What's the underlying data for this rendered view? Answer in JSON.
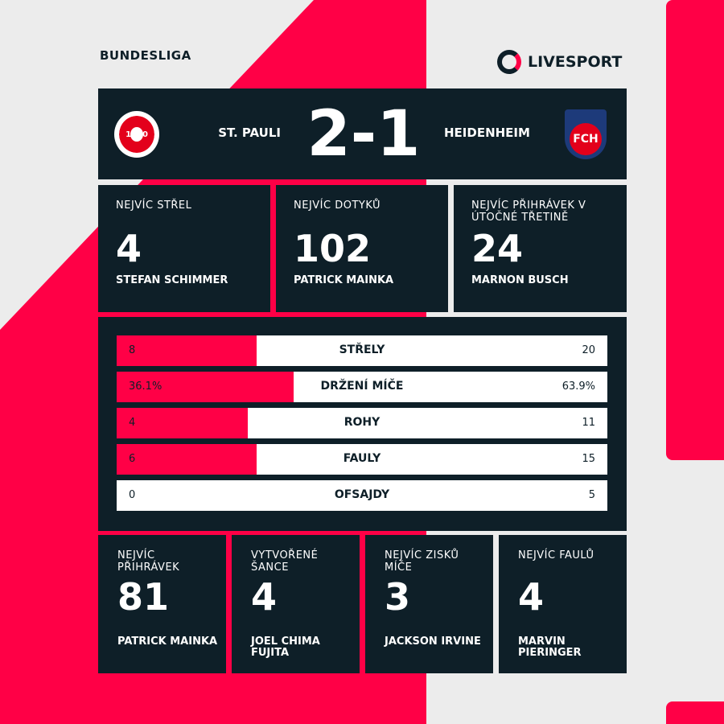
{
  "colors": {
    "accent": "#ff0046",
    "panel": "#0e1f28",
    "background": "#ececec"
  },
  "league": "BUNDESLIGA",
  "brand": "LIVESPORT",
  "match": {
    "home": "ST. PAULI",
    "away": "HEIDENHEIM",
    "score": "2-1",
    "home_crest": "FC ST. PAULI 1910",
    "away_crest": "FCH"
  },
  "top_cards": [
    {
      "label": "NEJVÍC STŘEL",
      "value": "4",
      "player": "STEFAN SCHIMMER"
    },
    {
      "label": "NEJVÍC DOTYKŮ",
      "value": "102",
      "player": "PATRICK MAINKA"
    },
    {
      "label": "NEJVÍC PŘIHRÁVEK V ÚTOČNÉ TŘETINĚ",
      "value": "24",
      "player": "MARNON BUSCH"
    }
  ],
  "stats": [
    {
      "name": "STŘELY",
      "home": "8",
      "away": "20",
      "home_share": 0.2857
    },
    {
      "name": "DRŽENÍ MÍČE",
      "home": "36.1%",
      "away": "63.9%",
      "home_share": 0.361
    },
    {
      "name": "ROHY",
      "home": "4",
      "away": "11",
      "home_share": 0.2667
    },
    {
      "name": "FAULY",
      "home": "6",
      "away": "15",
      "home_share": 0.2857
    },
    {
      "name": "OFSAJDY",
      "home": "0",
      "away": "5",
      "home_share": 0
    }
  ],
  "bottom_cards": [
    {
      "label": "NEJVÍC PŘIHRÁVEK",
      "value": "81",
      "player": "PATRICK MAINKA"
    },
    {
      "label": "VYTVOŘENÉ ŠANCE",
      "value": "4",
      "player": "JOEL CHIMA FUJITA"
    },
    {
      "label": "NEJVÍC ZISKŮ MÍČE",
      "value": "3",
      "player": "JACKSON IRVINE"
    },
    {
      "label": "NEJVÍC FAULŮ",
      "value": "4",
      "player": "MARVIN PIERINGER"
    }
  ]
}
